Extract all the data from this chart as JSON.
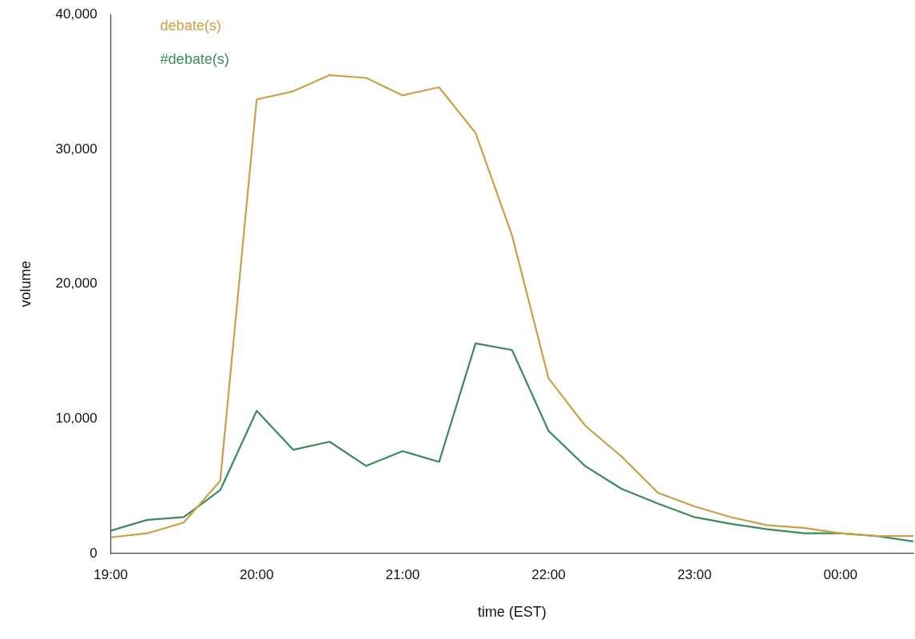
{
  "chart_data": {
    "type": "line",
    "xlabel": "time (EST)",
    "ylabel": "volume",
    "x": [
      19,
      19.25,
      19.5,
      19.75,
      20,
      20.25,
      20.5,
      20.75,
      21,
      21.25,
      21.5,
      21.75,
      22,
      22.25,
      22.5,
      22.75,
      23,
      23.25,
      23.5,
      23.75,
      24,
      24.25,
      24.5
    ],
    "series": [
      {
        "name": "debate(s)",
        "color": "#c9a043",
        "values": [
          1200,
          1500,
          2300,
          5400,
          33700,
          34300,
          35500,
          35300,
          34000,
          34600,
          31200,
          23600,
          13000,
          9500,
          7200,
          4500,
          3500,
          2700,
          2100,
          1900,
          1500,
          1300,
          1300
        ]
      },
      {
        "name": "#debate(s)",
        "color": "#3a8a5c",
        "values": [
          1700,
          2500,
          2700,
          4700,
          10600,
          7700,
          8300,
          6500,
          7600,
          6800,
          15600,
          15100,
          9100,
          6500,
          4800,
          3700,
          2700,
          2200,
          1800,
          1500,
          1500,
          1300,
          900
        ]
      }
    ],
    "xlim": [
      19,
      24.5
    ],
    "xticks": [
      {
        "value": 19,
        "label": "19:00"
      },
      {
        "value": 20,
        "label": "20:00"
      },
      {
        "value": 21,
        "label": "21:00"
      },
      {
        "value": 22,
        "label": "22:00"
      },
      {
        "value": 23,
        "label": "23:00"
      },
      {
        "value": 24,
        "label": "00:00"
      }
    ],
    "ylim": [
      0,
      40000
    ],
    "yticks": [
      0,
      {
        "value": 10000,
        "label": "10,000"
      },
      {
        "value": 20000,
        "label": "20,000"
      },
      {
        "value": 30000,
        "label": "30,000"
      },
      {
        "value": 40000,
        "label": "40,000"
      }
    ],
    "grid": false,
    "legend": "top left",
    "marker": "none",
    "line_style": "solid"
  }
}
